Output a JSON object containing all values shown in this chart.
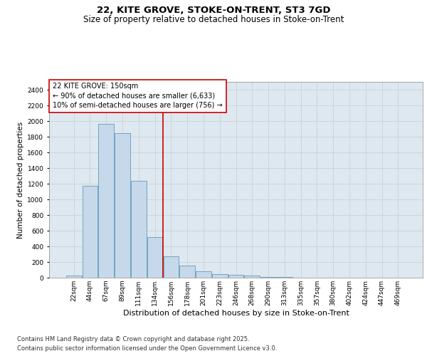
{
  "title_line1": "22, KITE GROVE, STOKE-ON-TRENT, ST3 7GD",
  "title_line2": "Size of property relative to detached houses in Stoke-on-Trent",
  "xlabel": "Distribution of detached houses by size in Stoke-on-Trent",
  "ylabel": "Number of detached properties",
  "categories": [
    "22sqm",
    "44sqm",
    "67sqm",
    "89sqm",
    "111sqm",
    "134sqm",
    "156sqm",
    "178sqm",
    "201sqm",
    "223sqm",
    "246sqm",
    "268sqm",
    "290sqm",
    "313sqm",
    "335sqm",
    "357sqm",
    "380sqm",
    "402sqm",
    "424sqm",
    "447sqm",
    "469sqm"
  ],
  "values": [
    25,
    1175,
    1960,
    1850,
    1240,
    520,
    275,
    155,
    85,
    48,
    35,
    25,
    10,
    5,
    2,
    2,
    2,
    1,
    1,
    1,
    1
  ],
  "bar_color": "#c5d9ea",
  "bar_edge_color": "#6699bb",
  "vline_x": 6,
  "vline_color": "#cc0000",
  "annotation_text": "22 KITE GROVE: 150sqm\n← 90% of detached houses are smaller (6,633)\n10% of semi-detached houses are larger (756) →",
  "annot_box_color": "#cc0000",
  "ylim": [
    0,
    2500
  ],
  "yticks": [
    0,
    200,
    400,
    600,
    800,
    1000,
    1200,
    1400,
    1600,
    1800,
    2000,
    2200,
    2400
  ],
  "grid_color": "#cccccc",
  "bg_color": "#dde8f0",
  "footer_line1": "Contains HM Land Registry data © Crown copyright and database right 2025.",
  "footer_line2": "Contains public sector information licensed under the Open Government Licence v3.0.",
  "title_fontsize": 9.5,
  "subtitle_fontsize": 8.5,
  "ylabel_fontsize": 7.5,
  "xlabel_fontsize": 8,
  "tick_fontsize": 6.5,
  "annot_fontsize": 7,
  "footer_fontsize": 6
}
